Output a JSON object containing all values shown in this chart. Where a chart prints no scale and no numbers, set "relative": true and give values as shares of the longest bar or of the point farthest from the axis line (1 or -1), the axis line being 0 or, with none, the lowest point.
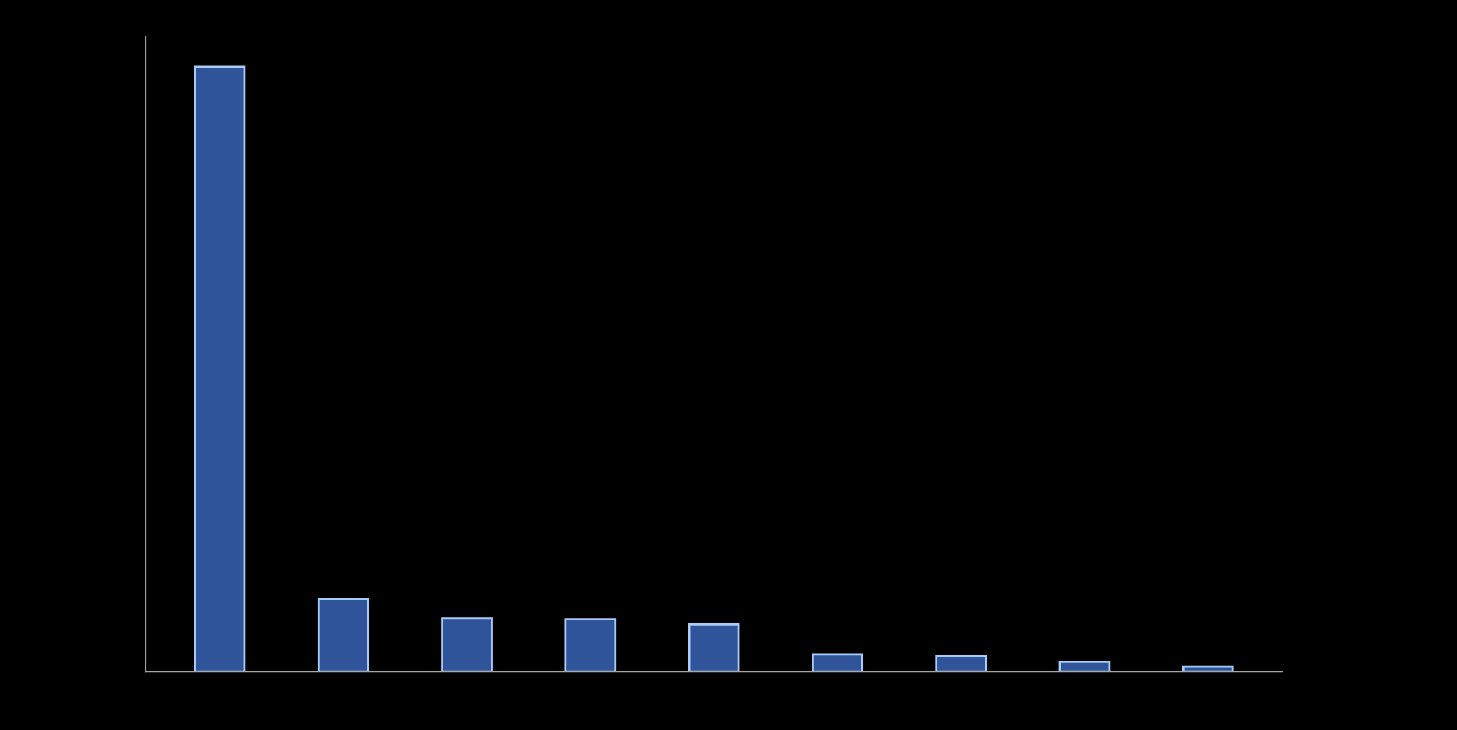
{
  "chart_data": {
    "type": "bar",
    "relative": true,
    "categories": [
      null,
      null,
      null,
      null,
      null,
      null,
      null,
      null,
      null
    ],
    "values": [
      1,
      0.12,
      0.088,
      0.087,
      0.078,
      0.028,
      0.026,
      0.016,
      0.008
    ],
    "color": "#2f549a"
  }
}
